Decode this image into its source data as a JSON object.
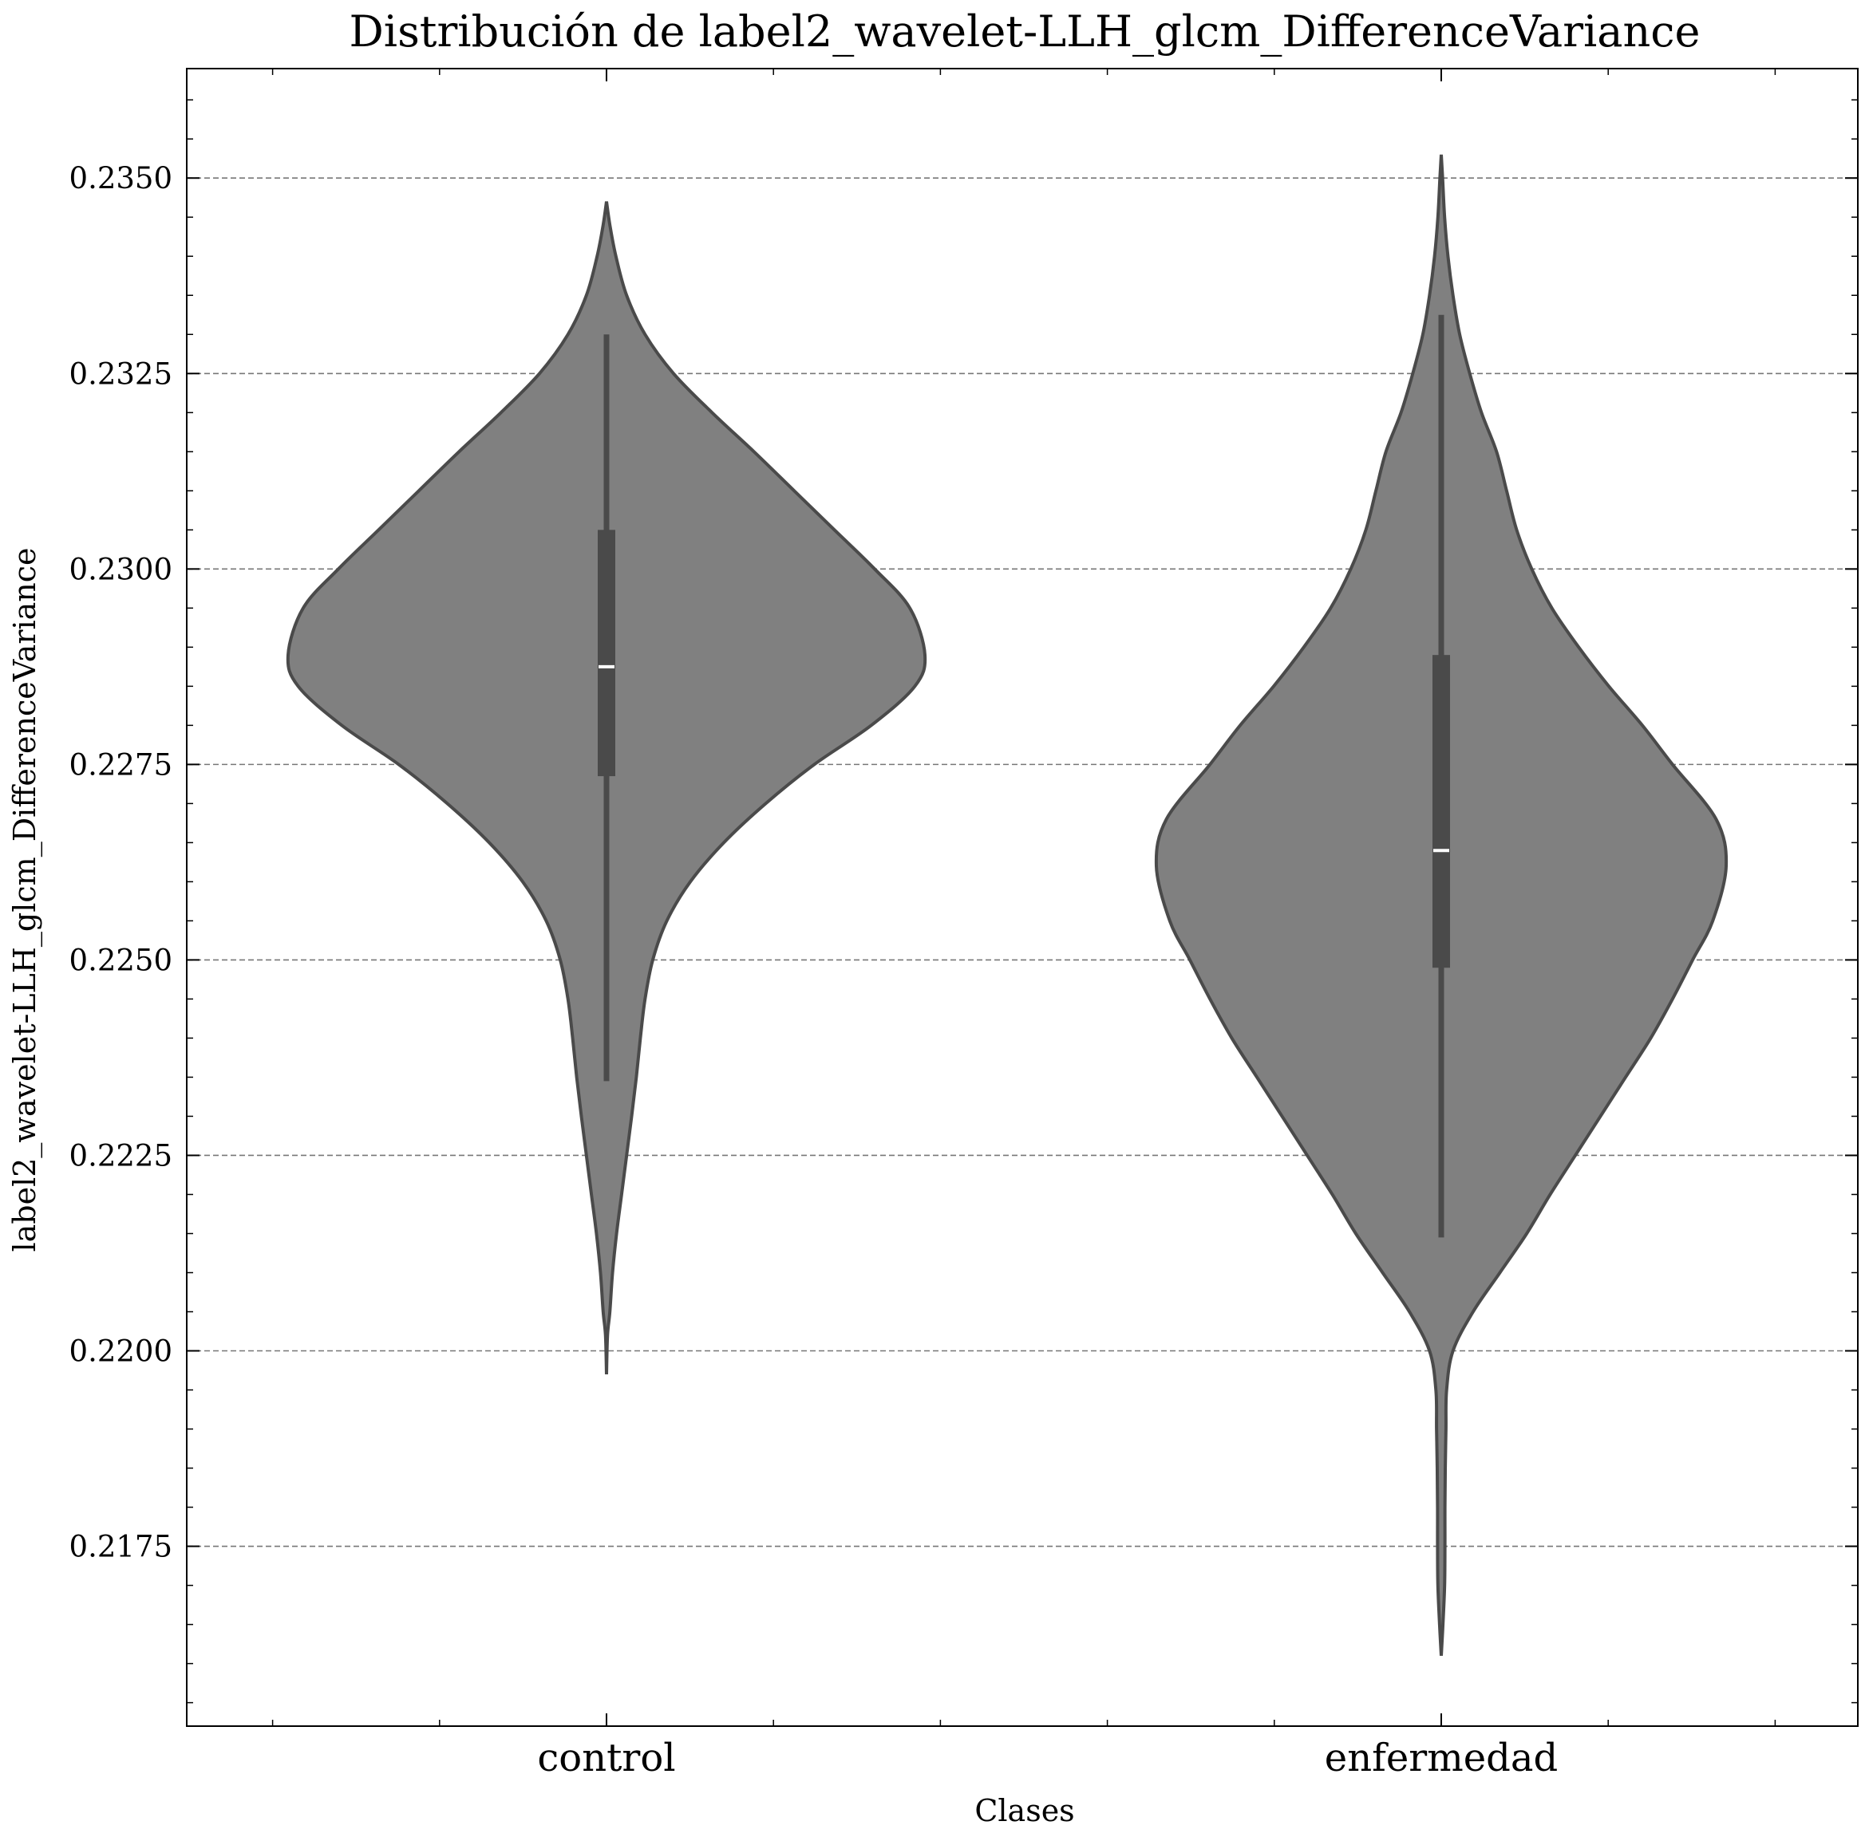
{
  "chart_data": {
    "type": "violin",
    "title": "Distribución de label2_wavelet-LLH_glcm_DifferenceVariance",
    "xlabel": "Clases",
    "ylabel": "label2_wavelet-LLH_glcm_DifferenceVariance",
    "categories": [
      "control",
      "enfermedad"
    ],
    "ylim": [
      0.2152,
      0.2364
    ],
    "yticks": [
      0.2175,
      0.22,
      0.2225,
      0.225,
      0.2275,
      0.23,
      0.2325,
      0.235
    ],
    "ytick_labels": [
      "0.2175",
      "0.2200",
      "0.2225",
      "0.2250",
      "0.2275",
      "0.2300",
      "0.2325",
      "0.2350"
    ],
    "grid": "y-dashed",
    "colors": {
      "fill": "#808080",
      "outline": "#4a4a4a",
      "box": "#4a4a4a",
      "median": "#ffffff",
      "grid": "#777777",
      "axis": "#000000"
    },
    "series": [
      {
        "category": "control",
        "min": 0.22345,
        "q1": 0.22735,
        "median": 0.22875,
        "q3": 0.2305,
        "max": 0.233,
        "density": [
          [
            0.2197,
            0.0
          ],
          [
            0.2202,
            0.003
          ],
          [
            0.2205,
            0.01
          ],
          [
            0.221,
            0.018
          ],
          [
            0.2215,
            0.03
          ],
          [
            0.222,
            0.045
          ],
          [
            0.2225,
            0.06
          ],
          [
            0.223,
            0.075
          ],
          [
            0.2235,
            0.089
          ],
          [
            0.224,
            0.101
          ],
          [
            0.2245,
            0.115
          ],
          [
            0.225,
            0.138
          ],
          [
            0.2255,
            0.18
          ],
          [
            0.226,
            0.25
          ],
          [
            0.2265,
            0.35
          ],
          [
            0.227,
            0.475
          ],
          [
            0.2275,
            0.62
          ],
          [
            0.228,
            0.79
          ],
          [
            0.2285,
            0.92
          ],
          [
            0.2289,
            0.95
          ],
          [
            0.2295,
            0.905
          ],
          [
            0.23,
            0.8
          ],
          [
            0.2305,
            0.68
          ],
          [
            0.231,
            0.56
          ],
          [
            0.2315,
            0.44
          ],
          [
            0.232,
            0.315
          ],
          [
            0.2325,
            0.2
          ],
          [
            0.233,
            0.115
          ],
          [
            0.2335,
            0.06
          ],
          [
            0.234,
            0.028
          ],
          [
            0.2344,
            0.01
          ],
          [
            0.2347,
            0.0
          ]
        ]
      },
      {
        "category": "enfermedad",
        "min": 0.22145,
        "q1": 0.2249,
        "median": 0.2264,
        "q3": 0.2289,
        "max": 0.23325,
        "density": [
          [
            0.2161,
            0.0
          ],
          [
            0.2165,
            0.005
          ],
          [
            0.217,
            0.01
          ],
          [
            0.2175,
            0.011
          ],
          [
            0.218,
            0.011
          ],
          [
            0.2185,
            0.012
          ],
          [
            0.219,
            0.014
          ],
          [
            0.2195,
            0.016
          ],
          [
            0.22,
            0.035
          ],
          [
            0.2205,
            0.095
          ],
          [
            0.221,
            0.175
          ],
          [
            0.2215,
            0.255
          ],
          [
            0.222,
            0.325
          ],
          [
            0.2225,
            0.4
          ],
          [
            0.223,
            0.475
          ],
          [
            0.2235,
            0.55
          ],
          [
            0.224,
            0.625
          ],
          [
            0.2245,
            0.69
          ],
          [
            0.225,
            0.75
          ],
          [
            0.2255,
            0.81
          ],
          [
            0.2262,
            0.85
          ],
          [
            0.2268,
            0.82
          ],
          [
            0.2275,
            0.69
          ],
          [
            0.228,
            0.6
          ],
          [
            0.2285,
            0.5
          ],
          [
            0.229,
            0.41
          ],
          [
            0.2295,
            0.33
          ],
          [
            0.23,
            0.27
          ],
          [
            0.2305,
            0.225
          ],
          [
            0.231,
            0.195
          ],
          [
            0.2315,
            0.165
          ],
          [
            0.232,
            0.12
          ],
          [
            0.2325,
            0.085
          ],
          [
            0.233,
            0.055
          ],
          [
            0.2335,
            0.035
          ],
          [
            0.234,
            0.02
          ],
          [
            0.2345,
            0.01
          ],
          [
            0.235,
            0.004
          ],
          [
            0.2353,
            0.0
          ]
        ]
      }
    ]
  }
}
